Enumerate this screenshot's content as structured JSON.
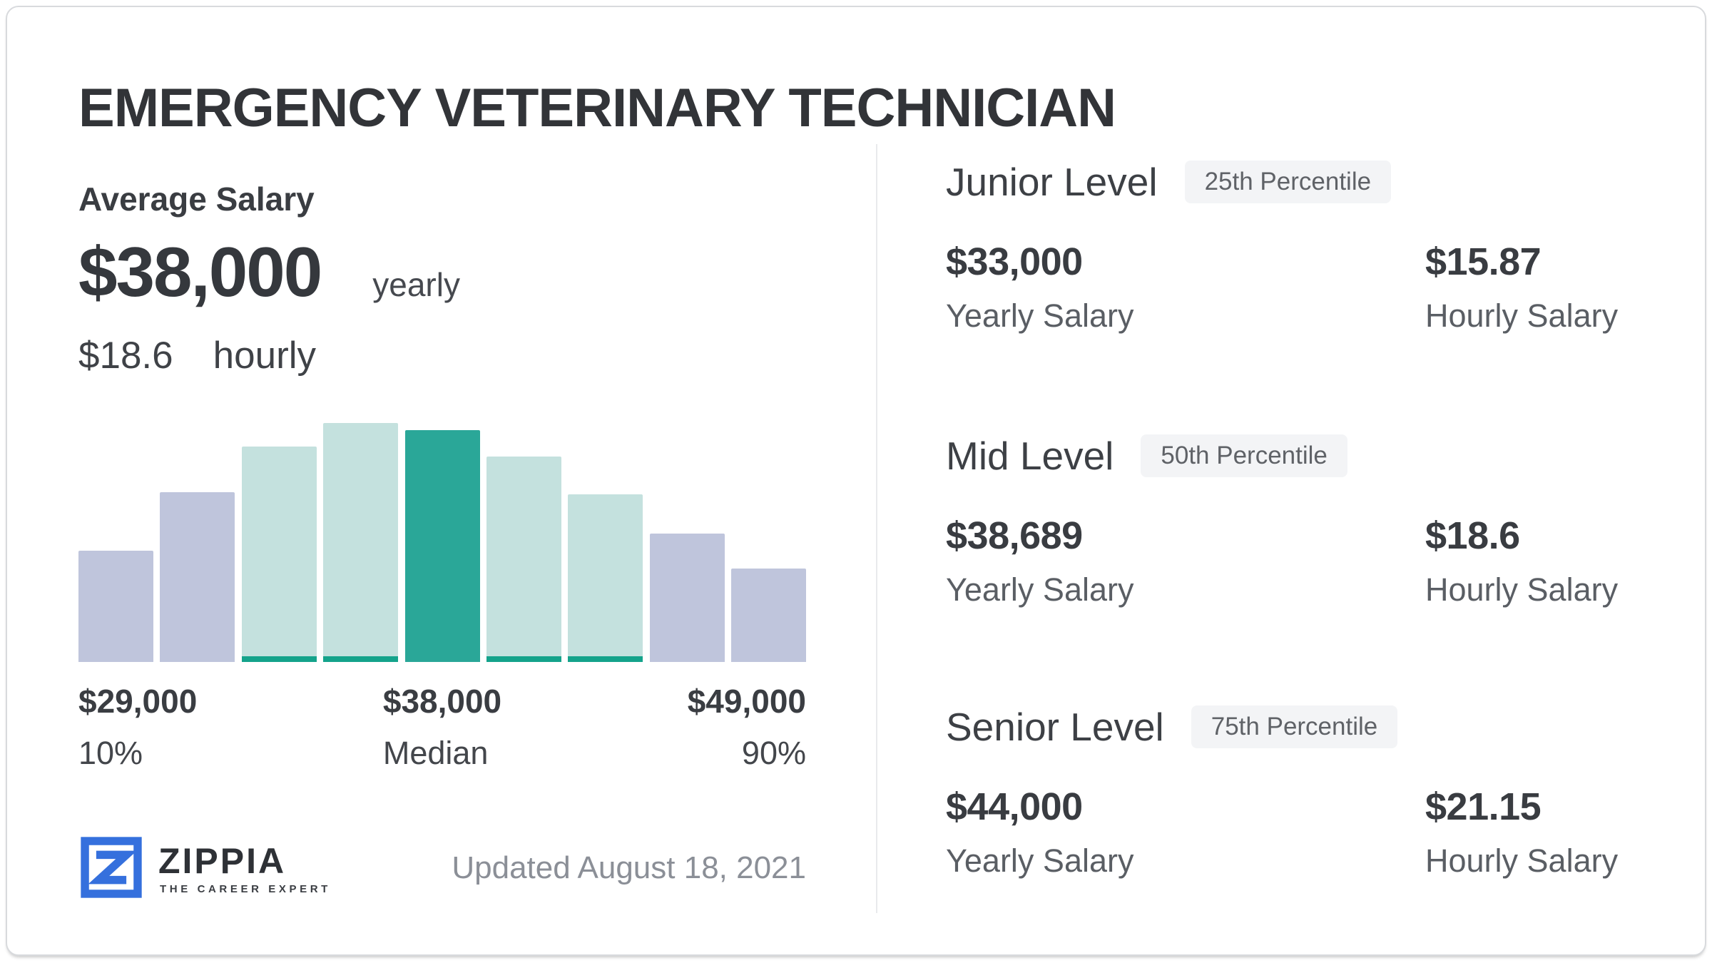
{
  "page": {
    "title": "EMERGENCY VETERINARY TECHNICIAN",
    "updated": "Updated August 18, 2021"
  },
  "brand": {
    "name": "ZIPPIA",
    "tagline": "THE CAREER EXPERT"
  },
  "average": {
    "heading": "Average Salary",
    "yearly_value": "$38,000",
    "yearly_unit": "yearly",
    "hourly_value": "$18.6",
    "hourly_unit": "hourly"
  },
  "chart_data": {
    "type": "bar",
    "description": "Salary distribution histogram from 10th to 90th percentile; no numeric axes shown, bar heights are relative frequency",
    "values_pct_of_max": [
      46.6,
      71.0,
      90.1,
      100,
      97.0,
      86.0,
      70.1,
      53.7,
      39.1
    ],
    "bar_roles": [
      "lavender",
      "lavender",
      "teal-light",
      "teal-light",
      "teal-dark",
      "teal-light",
      "teal-light",
      "lavender",
      "lavender"
    ],
    "annotations": [
      {
        "value": "$29,000",
        "label": "10%",
        "position": "left"
      },
      {
        "value": "$38,000",
        "label": "Median",
        "position": "center"
      },
      {
        "value": "$49,000",
        "label": "90%",
        "position": "right"
      }
    ],
    "axes": "none",
    "legend": "none"
  },
  "levels": [
    {
      "name": "Junior Level",
      "percentile": "25th Percentile",
      "yearly_value": "$33,000",
      "yearly_label": "Yearly Salary",
      "hourly_value": "$15.87",
      "hourly_label": "Hourly Salary"
    },
    {
      "name": "Mid Level",
      "percentile": "50th Percentile",
      "yearly_value": "$38,689",
      "yearly_label": "Yearly Salary",
      "hourly_value": "$18.6",
      "hourly_label": "Hourly Salary"
    },
    {
      "name": "Senior Level",
      "percentile": "75th Percentile",
      "yearly_value": "$44,000",
      "yearly_label": "Yearly Salary",
      "hourly_value": "$21.15",
      "hourly_label": "Hourly Salary"
    }
  ],
  "colors": {
    "accent_teal": "#2aa798",
    "accent_teal_strip": "#14a38b",
    "teal_light": "#c4e1de",
    "lavender": "#bfc5dc",
    "brand_blue": "#3570dd",
    "divider": "#e9eaec",
    "badge_bg": "#f3f4f6",
    "text_dark": "#37393e",
    "text_gray": "#5a5e64",
    "text_light": "#8b8f97"
  }
}
